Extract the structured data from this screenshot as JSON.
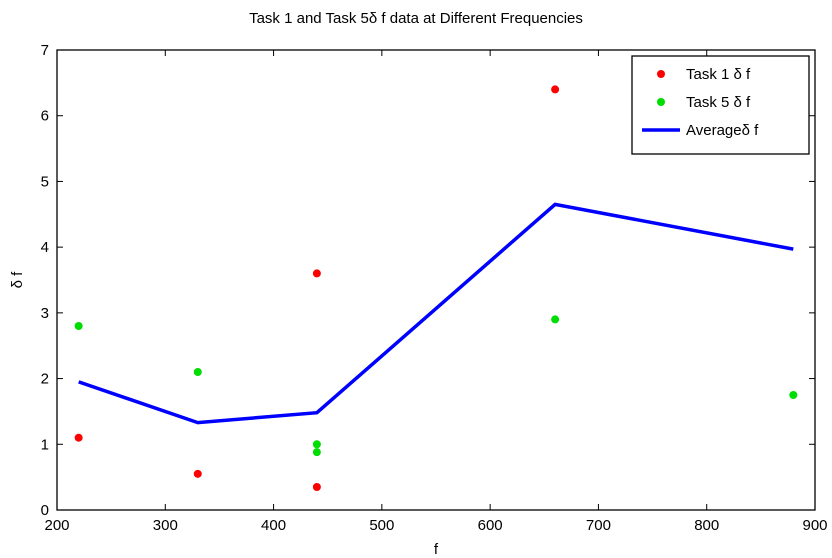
{
  "chart_data": {
    "type": "scatter",
    "title": "Task 1 and Task 5δ f data at Different Frequencies",
    "xlabel": "f",
    "ylabel": "δ f",
    "xlim": [
      200,
      900
    ],
    "ylim": [
      0,
      7
    ],
    "xticks": [
      200,
      300,
      400,
      500,
      600,
      700,
      800,
      900
    ],
    "yticks": [
      0,
      1,
      2,
      3,
      4,
      5,
      6,
      7
    ],
    "grid": false,
    "legend_position": "top-right",
    "series": [
      {
        "name": "Task 1 δ f",
        "kind": "points",
        "color": "#ff0000",
        "points": [
          [
            220,
            1.1
          ],
          [
            330,
            0.55
          ],
          [
            440,
            3.6
          ],
          [
            440,
            0.35
          ],
          [
            660,
            6.4
          ]
        ]
      },
      {
        "name": "Task 5 δ f",
        "kind": "points",
        "color": "#00dd00",
        "points": [
          [
            220,
            2.8
          ],
          [
            330,
            2.1
          ],
          [
            440,
            1.0
          ],
          [
            440,
            0.88
          ],
          [
            660,
            2.9
          ],
          [
            880,
            1.75
          ]
        ]
      },
      {
        "name": "Averageδ f",
        "kind": "line",
        "color": "#0000ff",
        "points": [
          [
            220,
            1.95
          ],
          [
            330,
            1.33
          ],
          [
            440,
            1.48
          ],
          [
            660,
            4.65
          ],
          [
            880,
            3.97
          ]
        ]
      }
    ]
  }
}
